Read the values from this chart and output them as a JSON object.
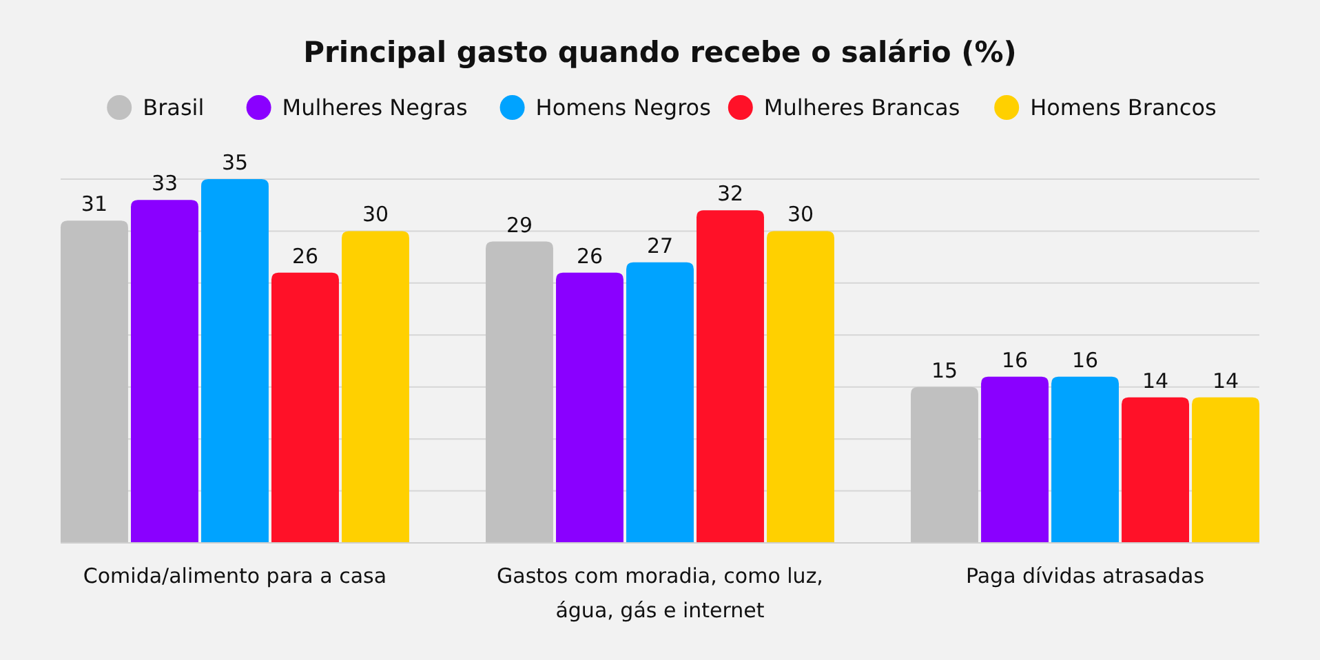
{
  "chart_data": {
    "type": "bar",
    "title": "Principal gasto quando recebe o salário (%)",
    "categories": [
      "Comida/alimento para a casa",
      "Gastos com moradia, como luz, água, gás e internet",
      "Paga dívidas atrasadas"
    ],
    "series": [
      {
        "name": "Brasil",
        "color": "#c0c0c0",
        "values": [
          31,
          29,
          15
        ]
      },
      {
        "name": "Mulheres Negras",
        "color": "#8a00ff",
        "values": [
          33,
          26,
          16
        ]
      },
      {
        "name": "Homens Negros",
        "color": "#00a3ff",
        "values": [
          35,
          27,
          16
        ]
      },
      {
        "name": "Mulheres Brancas",
        "color": "#ff1128",
        "values": [
          26,
          32,
          14
        ]
      },
      {
        "name": "Homens Brancos",
        "color": "#ffd000",
        "values": [
          30,
          30,
          14
        ]
      }
    ],
    "ylim": [
      0,
      35
    ],
    "yticks": [
      {
        "value": 0,
        "label": null
      },
      {
        "value": 5,
        "label": null
      },
      {
        "value": 10,
        "label": null
      },
      {
        "value": 15,
        "label": null
      },
      {
        "value": 20,
        "label": null
      },
      {
        "value": 25,
        "label": null
      },
      {
        "value": 30,
        "label": null
      },
      {
        "value": 35,
        "label": null
      }
    ],
    "grid": "y",
    "legend": "top",
    "data_labels": true,
    "tick_labels": "x"
  }
}
